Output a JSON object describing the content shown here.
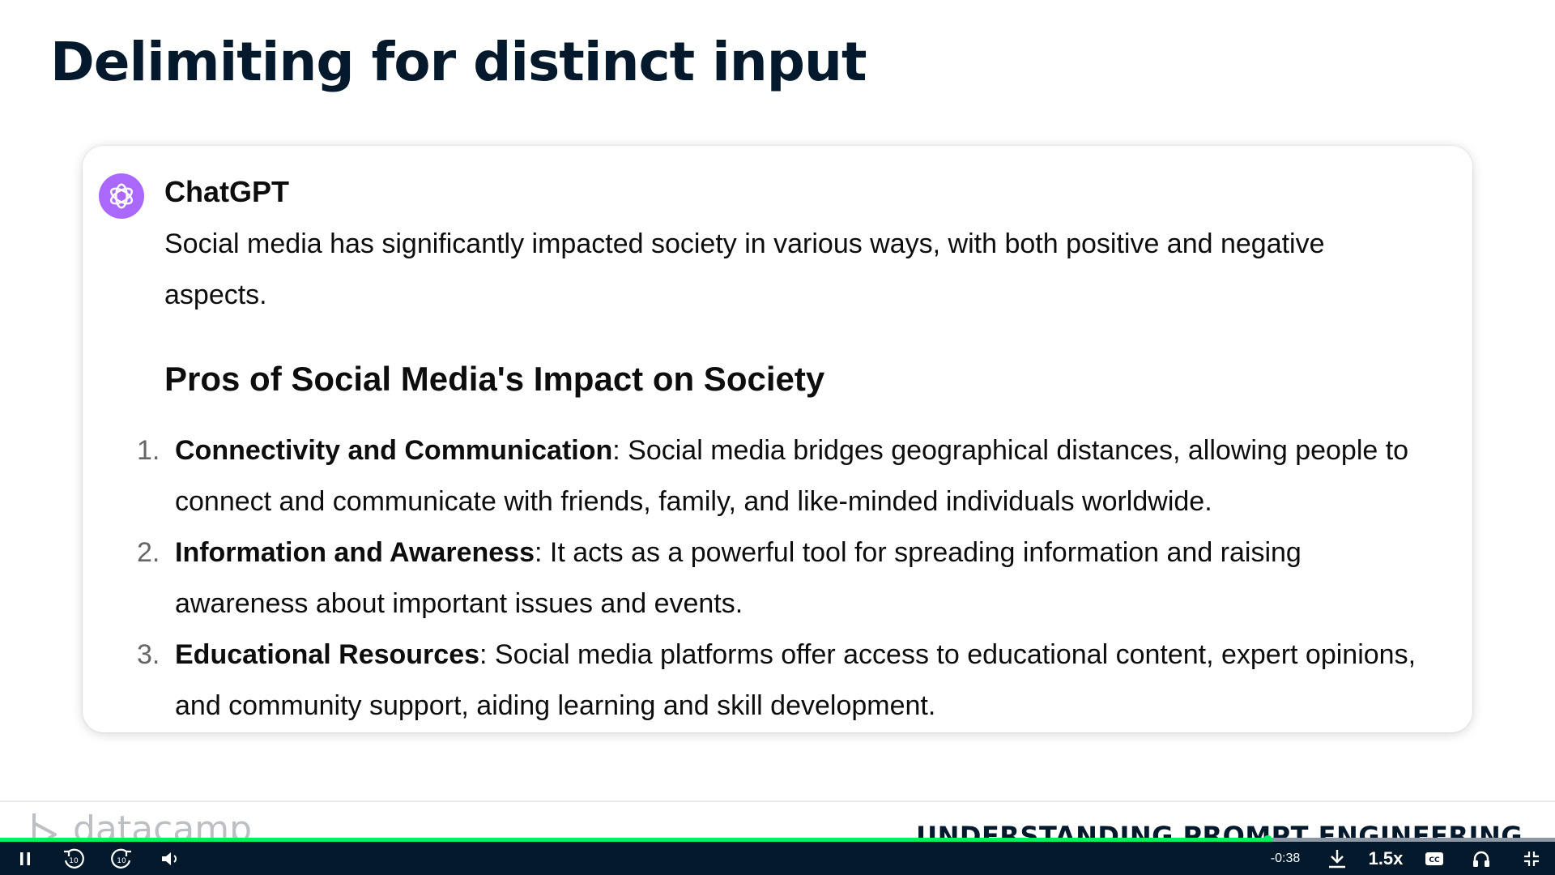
{
  "slide": {
    "title": "Delimiting for distinct input"
  },
  "chat": {
    "sender": "ChatGPT",
    "intro": "Social media has significantly impacted society in various ways, with both positive and negative aspects.",
    "section_heading": "Pros of Social Media's Impact on Society",
    "items": [
      {
        "number": "1.",
        "term": "Connectivity and Communication",
        "text": ": Social media bridges geographical distances, allowing people to connect and communicate with friends, family, and like-minded individuals worldwide."
      },
      {
        "number": "2.",
        "term": "Information and Awareness",
        "text": ": It acts as a powerful tool for spreading information and raising awareness about important issues and events."
      },
      {
        "number": "3.",
        "term": "Educational Resources",
        "text": ": Social media platforms offer access to educational content, expert opinions, and community support, aiding learning and skill development."
      }
    ]
  },
  "footer": {
    "brand": "datacamp",
    "course_title": "UNDERSTANDING PROMPT ENGINEERING"
  },
  "player": {
    "progress_fraction": 0.815,
    "time_remaining": "-0:38",
    "speed": "1.5x",
    "icons": {
      "pause": "pause-icon",
      "rewind": "rewind-10-icon",
      "forward": "forward-10-icon",
      "volume": "volume-icon",
      "download": "download-icon",
      "captions": "captions-icon",
      "audio": "headphones-icon",
      "fullscreen": "exit-fullscreen-icon"
    },
    "colors": {
      "bar_background": "#05192d",
      "progress": "#03ef62"
    }
  },
  "colors": {
    "title_text": "#05192d",
    "avatar": "#ab68ff",
    "footer_brand": "#bcbfc4"
  }
}
